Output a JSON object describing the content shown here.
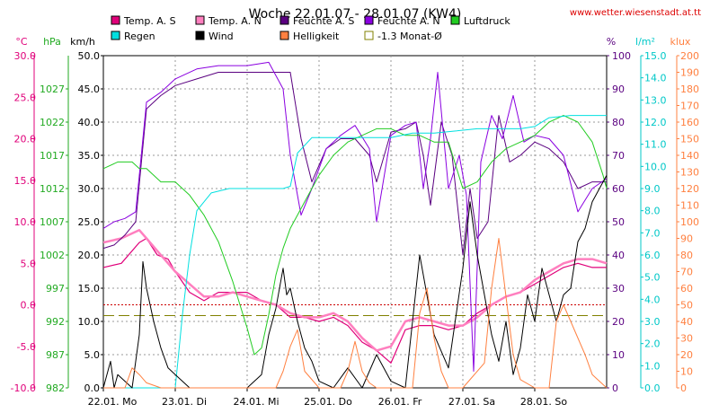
{
  "chart_data": {
    "type": "line",
    "title": "Woche 22.01.07 - 28.01.07 (KW4)",
    "source_link": "www.wetter.wiesenstadt.at.tt",
    "axis_units": {
      "temp": "°C",
      "pressure": "hPa",
      "wind": "km/h",
      "humidity": "%",
      "rain": "l/m²",
      "brightness": "klux"
    },
    "x_axis": {
      "range_days": [
        0,
        7
      ],
      "tick_labels": [
        "22.01. Mo",
        "23.01. Di",
        "24.01. Mi",
        "25.01. Do",
        "26.01. Fr",
        "27.01. Sa",
        "28.01. So"
      ]
    },
    "axes": {
      "temp": {
        "ylim": [
          -10,
          30
        ],
        "ticks": [
          "30.0",
          "25.0",
          "20.0",
          "15.0",
          "10.0",
          "5.0",
          "0.0",
          "-5.0",
          "-10.0"
        ]
      },
      "pressure": {
        "ylim": [
          982,
          1032
        ],
        "ticks": [
          "1027",
          "1022",
          "1017",
          "1012",
          "1007",
          "1002",
          "997",
          "992",
          "987",
          "982"
        ]
      },
      "wind": {
        "ylim": [
          0,
          50
        ],
        "ticks": [
          "50.0",
          "45.0",
          "40.0",
          "35.0",
          "30.0",
          "25.0",
          "20.0",
          "15.0",
          "10.0",
          "5.0",
          "0.0"
        ]
      },
      "humidity": {
        "ylim": [
          0,
          100
        ],
        "ticks": [
          "100",
          "90",
          "80",
          "70",
          "60",
          "50",
          "40",
          "30",
          "20",
          "10",
          "0"
        ]
      },
      "rain": {
        "ylim": [
          0,
          15
        ],
        "ticks": [
          "15.0",
          "14.0",
          "13.0",
          "12.0",
          "11.0",
          "10.0",
          "9.0",
          "8.0",
          "7.0",
          "6.0",
          "5.0",
          "4.0",
          "3.0",
          "2.0",
          "1.0",
          "0.0"
        ]
      },
      "brightness": {
        "ylim": [
          0,
          200
        ],
        "ticks": [
          "200",
          "190",
          "180",
          "170",
          "160",
          "150",
          "140",
          "130",
          "120",
          "110",
          "100",
          "90",
          "80",
          "70",
          "60",
          "50",
          "40",
          "30",
          "20",
          "10",
          "0"
        ]
      }
    },
    "legend": [
      {
        "name": "Temp. A. S",
        "color": "#e0007a",
        "marker": "filled"
      },
      {
        "name": "Temp. A. N",
        "color": "#ff7fbf",
        "marker": "filled"
      },
      {
        "name": "Feuchte A. S",
        "color": "#5a0080",
        "marker": "filled"
      },
      {
        "name": "Feuchte A. N",
        "color": "#8a00e0",
        "marker": "filled"
      },
      {
        "name": "Luftdruck",
        "color": "#22cc22",
        "marker": "filled"
      },
      {
        "name": "Regen",
        "color": "#00e0e0",
        "marker": "filled"
      },
      {
        "name": "Wind",
        "color": "#000000",
        "marker": "filled"
      },
      {
        "name": "Helligkeit",
        "color": "#ff8040",
        "marker": "filled"
      },
      {
        "name": "-1.3 Monat-Ø",
        "color": "#808000",
        "marker": "hollow"
      }
    ],
    "reference_lines": [
      {
        "axis": "temp",
        "value": 0,
        "color": "#cc0000",
        "style": "dotted"
      },
      {
        "axis": "temp",
        "value": -1.3,
        "color": "#808000",
        "style": "dashed"
      }
    ],
    "series": [
      {
        "name": "Temp. A. S",
        "axis": "temp",
        "color": "#e0007a",
        "x": [
          0,
          0.25,
          0.5,
          0.6,
          0.75,
          0.9,
          1.0,
          1.2,
          1.4,
          1.6,
          1.8,
          2.0,
          2.2,
          2.4,
          2.6,
          2.8,
          3.0,
          3.2,
          3.4,
          3.6,
          3.8,
          4.0,
          4.2,
          4.4,
          4.6,
          4.8,
          5.0,
          5.2,
          5.4,
          5.6,
          5.8,
          6.0,
          6.2,
          6.4,
          6.6,
          6.8,
          7.0
        ],
        "y": [
          4.5,
          5.0,
          7.5,
          8.0,
          6.0,
          5.5,
          4.0,
          1.5,
          0.5,
          1.5,
          1.5,
          1.5,
          0.5,
          0.0,
          -1.5,
          -1.5,
          -2.0,
          -1.5,
          -2.5,
          -4.5,
          -5.5,
          -7.0,
          -3.0,
          -2.5,
          -2.5,
          -3.0,
          -2.5,
          -1.0,
          0.0,
          1.0,
          1.5,
          2.5,
          3.5,
          4.5,
          5.0,
          4.5,
          4.5
        ]
      },
      {
        "name": "Temp. A. N",
        "axis": "temp",
        "color": "#ff7fbf",
        "x": [
          0,
          0.25,
          0.5,
          0.6,
          0.75,
          0.9,
          1.0,
          1.2,
          1.4,
          1.6,
          1.8,
          2.0,
          2.2,
          2.4,
          2.6,
          2.8,
          3.0,
          3.2,
          3.4,
          3.6,
          3.8,
          4.0,
          4.2,
          4.4,
          4.6,
          4.8,
          5.0,
          5.2,
          5.4,
          5.6,
          5.8,
          6.0,
          6.2,
          6.4,
          6.6,
          6.8,
          7.0
        ],
        "y": [
          7.5,
          8.0,
          9.0,
          8.0,
          6.5,
          5.0,
          4.0,
          2.5,
          1.0,
          1.0,
          1.5,
          1.0,
          0.5,
          0.0,
          -1.0,
          -1.5,
          -1.5,
          -1.0,
          -2.0,
          -4.0,
          -5.5,
          -5.0,
          -2.0,
          -1.5,
          -2.0,
          -2.5,
          -2.5,
          -1.5,
          0.0,
          1.0,
          1.5,
          3.0,
          4.0,
          5.0,
          5.5,
          5.5,
          5.0
        ]
      },
      {
        "name": "Feuchte A. S",
        "axis": "humidity",
        "color": "#5a0080",
        "x": [
          0,
          0.15,
          0.3,
          0.45,
          0.6,
          0.8,
          1.0,
          1.3,
          1.6,
          2.0,
          2.3,
          2.6,
          2.75,
          2.9,
          3.1,
          3.3,
          3.5,
          3.7,
          3.8,
          4.0,
          4.2,
          4.35,
          4.45,
          4.55,
          4.7,
          4.85,
          5.0,
          5.1,
          5.2,
          5.35,
          5.5,
          5.65,
          5.8,
          6.0,
          6.2,
          6.4,
          6.6,
          6.8,
          7.0
        ],
        "y": [
          42,
          43,
          46,
          50,
          84,
          88,
          91,
          93,
          95,
          95,
          95,
          95,
          75,
          62,
          72,
          75,
          75,
          70,
          62,
          77,
          78,
          80,
          70,
          55,
          80,
          70,
          40,
          60,
          45,
          50,
          82,
          68,
          70,
          74,
          72,
          68,
          60,
          62,
          62
        ]
      },
      {
        "name": "Feuchte A. N",
        "axis": "humidity",
        "color": "#8a00e0",
        "x": [
          0,
          0.15,
          0.3,
          0.45,
          0.6,
          0.8,
          1.0,
          1.3,
          1.6,
          2.0,
          2.3,
          2.5,
          2.6,
          2.75,
          2.9,
          3.1,
          3.3,
          3.5,
          3.7,
          3.8,
          4.0,
          4.2,
          4.35,
          4.45,
          4.55,
          4.65,
          4.8,
          4.95,
          5.05,
          5.15,
          5.25,
          5.4,
          5.55,
          5.7,
          5.85,
          6.0,
          6.2,
          6.4,
          6.6,
          6.8,
          7.0
        ],
        "y": [
          48,
          50,
          51,
          53,
          86,
          89,
          93,
          96,
          97,
          97,
          98,
          90,
          70,
          52,
          60,
          72,
          76,
          79,
          72,
          50,
          76,
          79,
          80,
          60,
          75,
          95,
          60,
          70,
          58,
          5,
          68,
          82,
          75,
          88,
          74,
          76,
          75,
          70,
          53,
          60,
          63
        ]
      },
      {
        "name": "Luftdruck",
        "axis": "pressure",
        "color": "#22cc22",
        "x": [
          0,
          0.2,
          0.4,
          0.5,
          0.6,
          0.8,
          1.0,
          1.2,
          1.4,
          1.6,
          1.8,
          2.0,
          2.1,
          2.2,
          2.3,
          2.4,
          2.5,
          2.6,
          2.8,
          3.0,
          3.2,
          3.4,
          3.6,
          3.8,
          4.0,
          4.2,
          4.4,
          4.6,
          4.8,
          5.0,
          5.2,
          5.4,
          5.6,
          5.8,
          6.0,
          6.2,
          6.4,
          6.6,
          6.8,
          6.95,
          7.0
        ],
        "y": [
          1015,
          1016,
          1016,
          1015,
          1015,
          1013,
          1013,
          1011,
          1008,
          1004,
          998,
          991,
          987,
          988,
          993,
          999,
          1003,
          1006,
          1010,
          1014,
          1017,
          1019,
          1020,
          1021,
          1021,
          1020,
          1020,
          1019,
          1019,
          1012,
          1013,
          1016,
          1018,
          1019,
          1020,
          1022,
          1023,
          1022,
          1019,
          1014,
          1012
        ]
      },
      {
        "name": "Regen",
        "axis": "rain",
        "color": "#00e0e0",
        "x": [
          0,
          0.9,
          1.0,
          1.1,
          1.2,
          1.3,
          1.5,
          1.75,
          2.0,
          2.2,
          2.5,
          2.6,
          2.7,
          2.9,
          3.2,
          3.5,
          3.8,
          4.0,
          4.3,
          4.6,
          4.9,
          5.2,
          5.5,
          5.8,
          6.0,
          6.2,
          6.5,
          6.8,
          7.0
        ],
        "y": [
          0,
          0,
          0,
          3.3,
          6.0,
          8.0,
          8.8,
          9.0,
          9.0,
          9.0,
          9.0,
          9.1,
          10.6,
          11.3,
          11.3,
          11.3,
          11.3,
          11.3,
          11.5,
          11.5,
          11.6,
          11.7,
          11.7,
          11.7,
          11.8,
          12.2,
          12.3,
          12.3,
          12.3
        ]
      },
      {
        "name": "Wind",
        "axis": "wind",
        "color": "#000000",
        "x": [
          0,
          0.1,
          0.15,
          0.2,
          0.3,
          0.4,
          0.5,
          0.55,
          0.6,
          0.7,
          0.8,
          0.9,
          1.0,
          1.1,
          1.2,
          1.5,
          2.0,
          2.2,
          2.3,
          2.4,
          2.5,
          2.55,
          2.6,
          2.7,
          2.8,
          2.9,
          3.0,
          3.2,
          3.4,
          3.6,
          3.8,
          4.0,
          4.2,
          4.4,
          4.6,
          4.8,
          5.0,
          5.1,
          5.2,
          5.3,
          5.4,
          5.5,
          5.6,
          5.7,
          5.8,
          5.9,
          6.0,
          6.1,
          6.2,
          6.3,
          6.4,
          6.5,
          6.6,
          6.7,
          6.8,
          6.9,
          7.0
        ],
        "y": [
          0,
          4,
          0,
          2,
          1,
          0,
          8,
          19,
          15,
          10,
          6,
          3,
          2,
          1,
          0,
          0,
          0,
          2,
          8,
          12,
          18,
          14,
          15,
          10,
          6,
          4,
          1,
          0,
          3,
          0,
          5,
          1,
          0,
          20,
          8,
          3,
          18,
          28,
          20,
          14,
          8,
          4,
          10,
          2,
          6,
          14,
          10,
          18,
          14,
          10,
          14,
          15,
          22,
          24,
          28,
          30,
          32
        ]
      },
      {
        "name": "Helligkeit",
        "axis": "brightness",
        "color": "#ff8040",
        "x": [
          0,
          0.3,
          0.4,
          0.5,
          0.6,
          0.8,
          1.0,
          1.2,
          1.5,
          2.0,
          2.1,
          2.2,
          2.3,
          2.4,
          2.5,
          2.6,
          2.7,
          2.8,
          3.0,
          3.3,
          3.4,
          3.5,
          3.6,
          3.7,
          3.8,
          4.0,
          4.3,
          4.4,
          4.5,
          4.55,
          4.6,
          4.7,
          4.8,
          5.0,
          5.3,
          5.4,
          5.5,
          5.6,
          5.7,
          5.8,
          6.0,
          6.2,
          6.3,
          6.4,
          6.5,
          6.6,
          6.7,
          6.8,
          7.0
        ],
        "y": [
          0,
          0,
          12,
          8,
          3,
          0,
          0,
          0,
          0,
          0,
          0,
          0,
          0,
          0,
          10,
          25,
          35,
          10,
          0,
          0,
          10,
          28,
          10,
          3,
          0,
          0,
          0,
          45,
          60,
          45,
          30,
          10,
          0,
          0,
          15,
          60,
          90,
          55,
          20,
          5,
          0,
          0,
          40,
          50,
          40,
          30,
          20,
          8,
          0
        ]
      }
    ]
  }
}
